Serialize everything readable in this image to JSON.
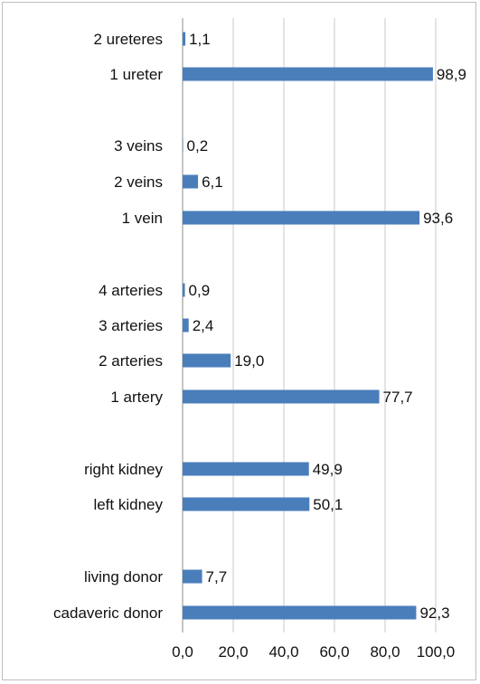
{
  "chart_data": {
    "type": "bar",
    "orientation": "horizontal",
    "title": "",
    "xlabel": "",
    "ylabel": "",
    "xlim": [
      0,
      100
    ],
    "x_ticks": [
      "0,0",
      "20,0",
      "40,0",
      "60,0",
      "80,0",
      "100,0"
    ],
    "grid": true,
    "legend": "none",
    "bar_color": "#4a7ebb",
    "categories": [
      "2 ureteres",
      "1 ureter",
      "3 veins",
      "2 veins",
      "1 vein",
      "4 arteries",
      "3 arteries",
      "2 arteries",
      "1 artery",
      "right kidney",
      "left kidney",
      "living donor",
      "cadaveric donor"
    ],
    "values": [
      1.1,
      98.9,
      0.2,
      6.1,
      93.6,
      0.9,
      2.4,
      19.0,
      77.7,
      49.9,
      50.1,
      7.7,
      92.3
    ],
    "value_labels": [
      "1,1",
      "98,9",
      "0,2",
      "6,1",
      "93,6",
      "0,9",
      "2,4",
      "19,0",
      "77,7",
      "49,9",
      "50,1",
      "7,7",
      "92,3"
    ]
  }
}
